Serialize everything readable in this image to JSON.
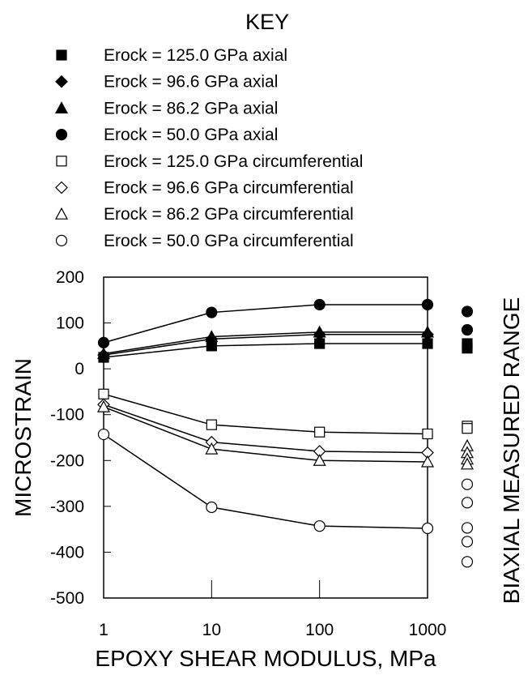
{
  "chart_data": {
    "type": "line",
    "key_title": "KEY",
    "xlabel": "EPOXY SHEAR MODULUS, MPa",
    "ylabel": "MICROSTRAIN",
    "right_label": "BIAXIAL MEASURED RANGE",
    "x_scale": "log",
    "xlim": [
      1,
      1000
    ],
    "ylim": [
      -500,
      200
    ],
    "x_ticks": [
      "1",
      "10",
      "100",
      "1000"
    ],
    "y_ticks": [
      "200",
      "100",
      "0",
      "-100",
      "-200",
      "-300",
      "-400",
      "-500"
    ],
    "grid": false,
    "legend_position": "top",
    "x": [
      1,
      10,
      100,
      1000
    ],
    "series": [
      {
        "name": "Erock = 125.0 GPa axial",
        "marker": "square",
        "filled": true,
        "values": [
          25,
          50,
          55,
          55
        ]
      },
      {
        "name": "Erock = 96.6 GPa axial",
        "marker": "diamond",
        "filled": true,
        "values": [
          30,
          65,
          75,
          75
        ]
      },
      {
        "name": "Erock = 86.2 GPa axial",
        "marker": "triangle",
        "filled": true,
        "values": [
          33,
          70,
          80,
          80
        ]
      },
      {
        "name": "Erock = 50.0 GPa axial",
        "marker": "circle",
        "filled": true,
        "values": [
          57,
          123,
          140,
          140
        ]
      },
      {
        "name": "Erock = 125.0 GPa circumferential",
        "marker": "square",
        "filled": false,
        "values": [
          -55,
          -122,
          -138,
          -142
        ]
      },
      {
        "name": "Erock = 96.6 GPa circumferential",
        "marker": "diamond",
        "filled": false,
        "values": [
          -78,
          -160,
          -180,
          -183
        ]
      },
      {
        "name": "Erock = 86.2 GPa circumferential",
        "marker": "triangle",
        "filled": false,
        "values": [
          -83,
          -175,
          -200,
          -203
        ]
      },
      {
        "name": "Erock = 50.0 GPa circumferential",
        "marker": "circle",
        "filled": false,
        "values": [
          -143,
          -302,
          -343,
          -348
        ]
      }
    ],
    "biaxial_measured": [
      {
        "marker": "circle",
        "filled": true,
        "values": [
          125,
          85
        ]
      },
      {
        "marker": "square",
        "filled": true,
        "values": [
          55,
          45
        ]
      },
      {
        "marker": "square",
        "filled": false,
        "values": [
          -125,
          -130
        ]
      },
      {
        "marker": "triangle",
        "filled": false,
        "values": [
          -168,
          -183,
          -197,
          -208
        ]
      },
      {
        "marker": "circle",
        "filled": false,
        "values": [
          -252,
          -292,
          -347,
          -377,
          -421
        ]
      }
    ]
  }
}
